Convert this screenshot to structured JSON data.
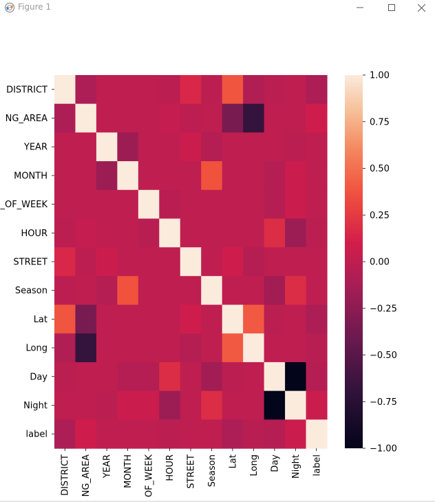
{
  "window": {
    "title": "Figure 1"
  },
  "chart_data": {
    "type": "heatmap",
    "labels": [
      "DISTRICT",
      "NG_AREA",
      "YEAR",
      "MONTH",
      "_OF_WEEK",
      "HOUR",
      "STREET",
      "Season",
      "Lat",
      "Long",
      "Day",
      "Night",
      "label"
    ],
    "values": [
      [
        1.0,
        -0.1,
        0.0,
        0.0,
        0.0,
        -0.02,
        0.15,
        -0.01,
        0.38,
        -0.08,
        -0.02,
        0.0,
        -0.1
      ],
      [
        -0.1,
        1.0,
        0.0,
        0.0,
        0.0,
        0.03,
        -0.01,
        0.0,
        -0.35,
        -0.68,
        0.0,
        0.0,
        0.08
      ],
      [
        0.0,
        0.0,
        1.0,
        -0.18,
        0.0,
        0.0,
        0.06,
        -0.06,
        0.0,
        0.0,
        0.0,
        -0.02,
        0.0
      ],
      [
        0.0,
        0.0,
        -0.18,
        1.0,
        0.0,
        0.0,
        0.0,
        0.37,
        0.0,
        0.0,
        -0.05,
        0.06,
        0.0
      ],
      [
        0.0,
        0.0,
        0.0,
        0.0,
        1.0,
        -0.03,
        0.0,
        0.0,
        0.0,
        0.0,
        -0.05,
        0.06,
        0.0
      ],
      [
        -0.02,
        0.03,
        0.0,
        0.0,
        -0.03,
        1.0,
        0.0,
        0.0,
        0.0,
        0.0,
        0.18,
        -0.18,
        -0.02
      ],
      [
        0.15,
        -0.01,
        0.06,
        0.0,
        0.0,
        0.0,
        1.0,
        0.0,
        0.08,
        -0.06,
        0.0,
        0.0,
        0.0
      ],
      [
        -0.01,
        0.0,
        -0.06,
        0.37,
        0.0,
        0.0,
        0.0,
        1.0,
        0.0,
        0.0,
        -0.15,
        0.18,
        0.0
      ],
      [
        0.38,
        -0.35,
        0.0,
        0.0,
        0.0,
        0.0,
        0.08,
        0.0,
        1.0,
        0.4,
        -0.02,
        0.0,
        -0.1
      ],
      [
        -0.08,
        -0.68,
        0.0,
        0.0,
        0.0,
        0.0,
        -0.06,
        0.0,
        0.4,
        1.0,
        0.0,
        0.0,
        -0.03
      ],
      [
        -0.02,
        0.0,
        0.0,
        -0.05,
        -0.05,
        0.18,
        0.0,
        -0.15,
        -0.02,
        0.0,
        1.0,
        -1.0,
        -0.05
      ],
      [
        0.0,
        0.0,
        -0.02,
        0.06,
        0.06,
        -0.18,
        0.0,
        0.18,
        0.0,
        0.0,
        -1.0,
        1.0,
        0.06
      ],
      [
        -0.1,
        0.08,
        0.0,
        0.0,
        0.0,
        -0.02,
        0.0,
        0.0,
        -0.1,
        -0.03,
        -0.05,
        0.06,
        1.0
      ]
    ],
    "vmin": -1.0,
    "vmax": 1.0,
    "colormap": "rocket",
    "colorbar_ticks": [
      1.0,
      0.75,
      0.5,
      0.25,
      0.0,
      -0.25,
      -0.5,
      -0.75,
      -1.0
    ],
    "colorbar_tick_labels": [
      "1.00",
      "0.75",
      "0.50",
      "0.25",
      "0.00",
      "−0.25",
      "−0.50",
      "−0.75",
      "−1.00"
    ]
  }
}
